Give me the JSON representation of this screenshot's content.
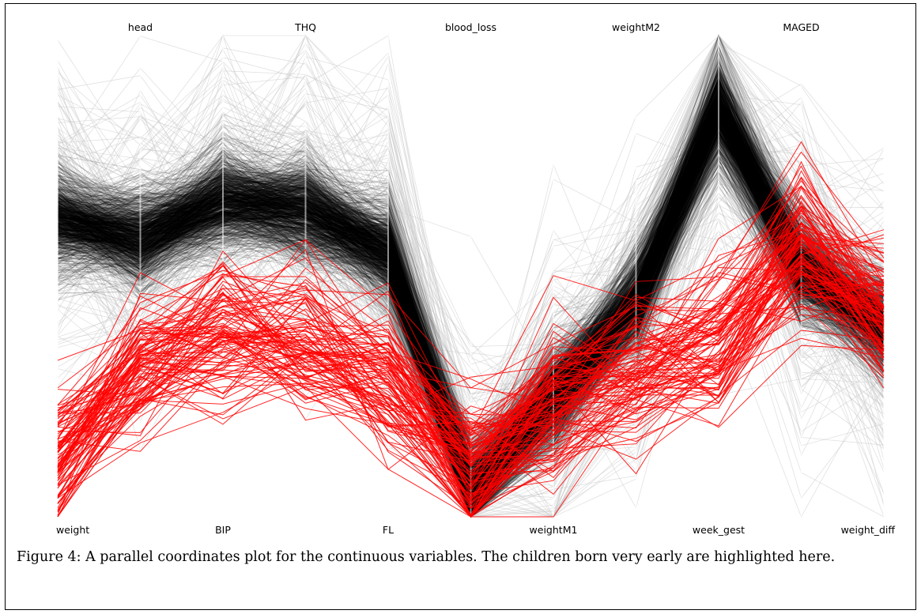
{
  "chart_data": {
    "type": "parallel-coordinates",
    "axes": [
      {
        "name": "weight",
        "label_position": "bottom"
      },
      {
        "name": "head",
        "label_position": "top"
      },
      {
        "name": "BIP",
        "label_position": "bottom"
      },
      {
        "name": "THQ",
        "label_position": "top"
      },
      {
        "name": "FL",
        "label_position": "bottom"
      },
      {
        "name": "blood_loss",
        "label_position": "top"
      },
      {
        "name": "weightM1",
        "label_position": "bottom"
      },
      {
        "name": "weightM2",
        "label_position": "top"
      },
      {
        "name": "week_gest",
        "label_position": "bottom"
      },
      {
        "name": "MAGED",
        "label_position": "top"
      },
      {
        "name": "weight_diff",
        "label_position": "bottom"
      }
    ],
    "value_range": [
      0,
      1
    ],
    "series": [
      {
        "color": "#000000",
        "typical_profile": [
          0.62,
          0.58,
          0.66,
          0.64,
          0.55,
          0.05,
          0.25,
          0.45,
          0.85,
          0.52,
          0.4
        ]
      },
      {
        "color": "#ff0000",
        "typical_profile": [
          0.12,
          0.3,
          0.38,
          0.36,
          0.28,
          0.1,
          0.22,
          0.3,
          0.35,
          0.55,
          0.42
        ]
      }
    ],
    "colors": {
      "background_lines": "#000000",
      "faint_lines": "#c8c8c8",
      "highlight": "#ff0000"
    }
  },
  "caption": "Figure 4: A parallel coordinates plot for the continuous variables. The children born very early are highlighted here."
}
